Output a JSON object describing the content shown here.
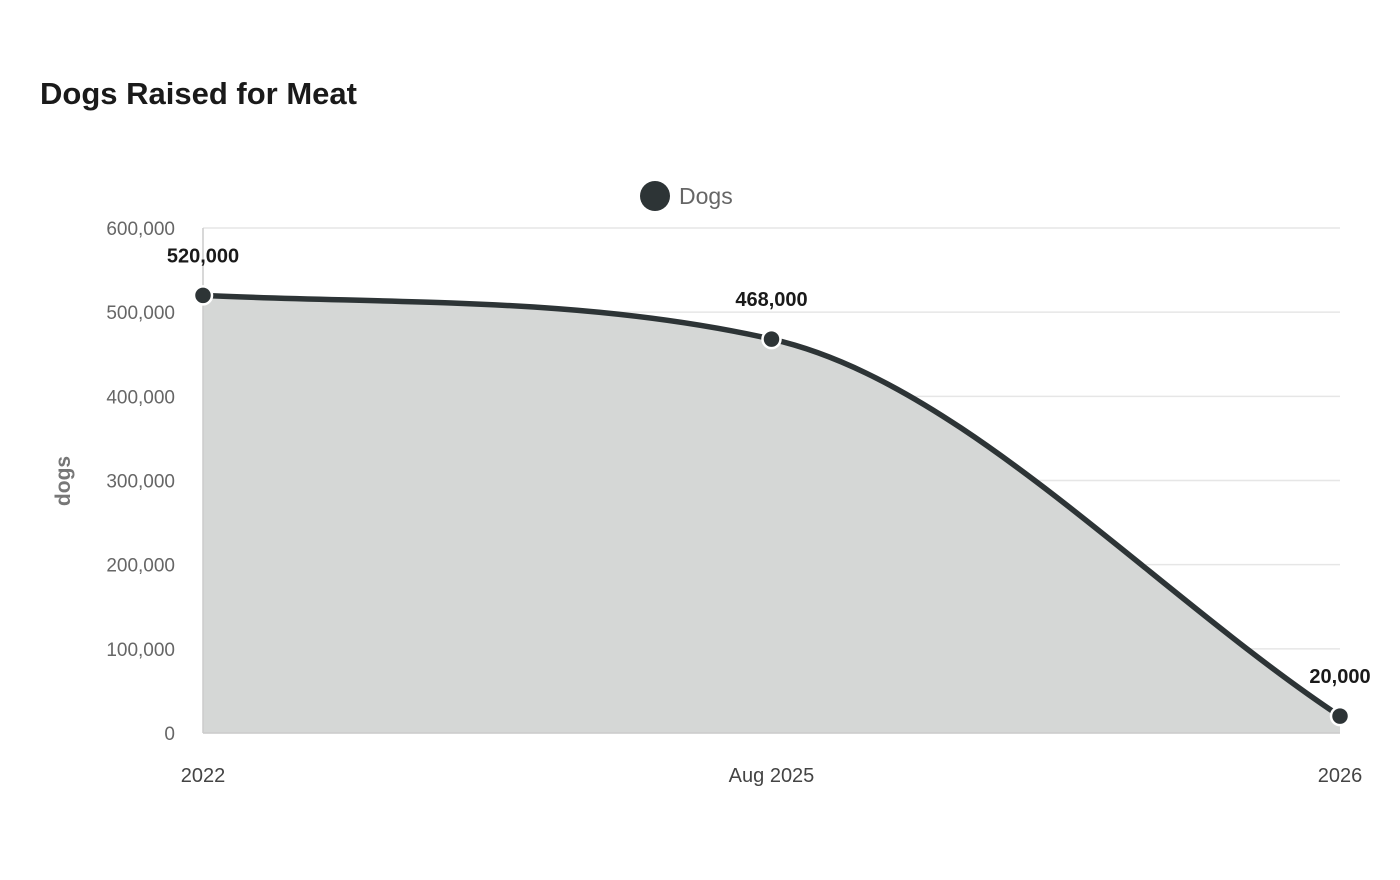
{
  "chart_data": {
    "type": "area",
    "title": "Dogs Raised for Meat",
    "ylabel": "dogs",
    "xlabel": "",
    "x": [
      "2022",
      "Aug 2025",
      "2026"
    ],
    "series": [
      {
        "name": "Dogs",
        "values": [
          520000,
          468000,
          20000
        ],
        "data_labels": [
          "520,000",
          "468,000",
          "20,000"
        ]
      }
    ],
    "ylim": [
      0,
      600000
    ],
    "y_ticks": [
      0,
      100000,
      200000,
      300000,
      400000,
      500000,
      600000
    ],
    "y_tick_labels": [
      "0",
      "100,000",
      "200,000",
      "300,000",
      "400,000",
      "500,000",
      "600,000"
    ],
    "grid": true,
    "legend_position": "top-center",
    "colors": {
      "line": "#2d3436",
      "fill": "#d5d7d6",
      "grid": "#e6e6e6"
    }
  }
}
